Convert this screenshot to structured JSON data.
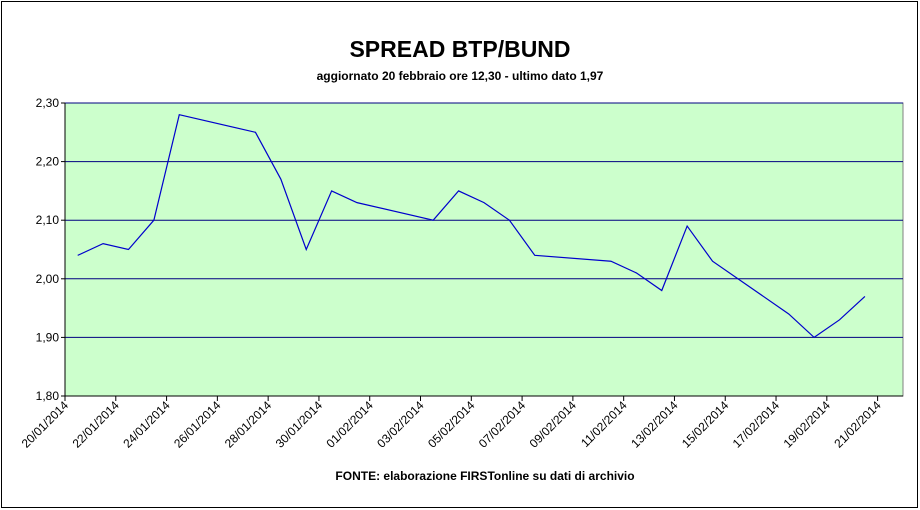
{
  "chart_data": {
    "type": "line",
    "title": "SPREAD BTP/BUND",
    "subtitle": "aggiornato 20 febbraio ore 12,30 - ultimo dato 1,97",
    "source": "FONTE: elaborazione FIRSTonline su dati di archivio",
    "x": [
      "20/01/2014",
      "21/01/2014",
      "22/01/2014",
      "23/01/2014",
      "24/01/2014",
      "27/01/2014",
      "28/01/2014",
      "29/01/2014",
      "30/01/2014",
      "31/01/2014",
      "03/02/2014",
      "04/02/2014",
      "05/02/2014",
      "06/02/2014",
      "07/02/2014",
      "10/02/2014",
      "11/02/2014",
      "12/02/2014",
      "13/02/2014",
      "14/02/2014",
      "17/02/2014",
      "18/02/2014",
      "19/02/2014",
      "20/02/2014"
    ],
    "series": [
      {
        "name": "Spread BTP/Bund",
        "color": "#0000cc",
        "values": [
          2.04,
          2.06,
          2.05,
          2.1,
          2.28,
          2.25,
          2.17,
          2.05,
          2.15,
          2.13,
          2.1,
          2.15,
          2.13,
          2.1,
          2.04,
          2.03,
          2.01,
          1.98,
          2.09,
          2.03,
          1.94,
          1.9,
          1.93,
          1.97
        ]
      }
    ],
    "xlim": [
      "20/01/2014",
      "22/02/2014"
    ],
    "xticks": [
      "20/01/2014",
      "22/01/2014",
      "24/01/2014",
      "26/01/2014",
      "28/01/2014",
      "30/01/2014",
      "01/02/2014",
      "03/02/2014",
      "05/02/2014",
      "07/02/2014",
      "09/02/2014",
      "11/02/2014",
      "13/02/2014",
      "15/02/2014",
      "17/02/2014",
      "19/02/2014",
      "21/02/2014"
    ],
    "ylim": [
      1.8,
      2.3
    ],
    "yticks": [
      {
        "value": 1.8,
        "label": "1,80"
      },
      {
        "value": 1.9,
        "label": "1,90"
      },
      {
        "value": 2.0,
        "label": "2,00"
      },
      {
        "value": 2.1,
        "label": "2,10"
      },
      {
        "value": 2.2,
        "label": "2,20"
      },
      {
        "value": 2.3,
        "label": "2,30"
      }
    ],
    "grid": true,
    "background": "#ccffcc",
    "grid_color": "#000080"
  }
}
